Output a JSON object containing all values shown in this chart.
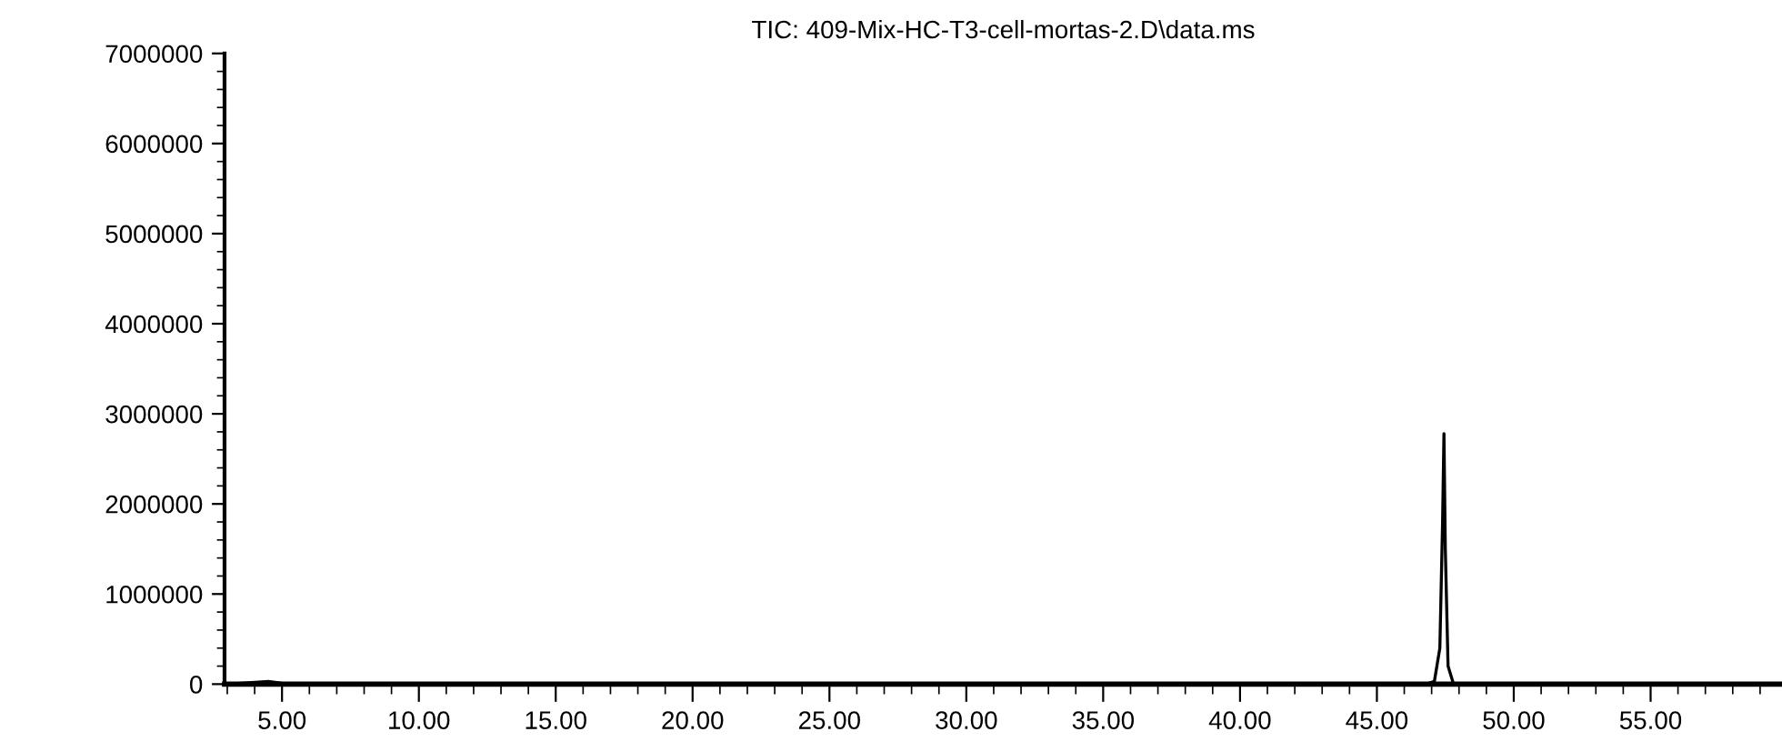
{
  "chart_data": {
    "type": "line",
    "title": "TIC: 409-Mix-HC-T3-cell-mortas-2.D\\data.ms",
    "x": [
      3.0,
      3.5,
      4.0,
      4.5,
      5.0,
      6.0,
      10.0,
      20.0,
      30.0,
      40.0,
      46.8,
      47.1,
      47.3,
      47.4,
      47.45,
      47.5,
      47.6,
      47.8,
      50.0,
      59.5
    ],
    "series": [
      {
        "color": "#000000",
        "values": [
          0,
          10000,
          20000,
          30000,
          10000,
          0,
          0,
          0,
          0,
          0,
          0,
          30000,
          400000,
          1800000,
          2780000,
          1500000,
          200000,
          0,
          0,
          0
        ]
      }
    ],
    "xlim": [
      2.9,
      59.8
    ],
    "xticks": [
      {
        "value": 3,
        "label": null
      },
      {
        "value": 4,
        "label": null
      },
      {
        "value": 5,
        "label": "5.00"
      },
      {
        "value": 6,
        "label": null
      },
      {
        "value": 7,
        "label": null
      },
      {
        "value": 8,
        "label": null
      },
      {
        "value": 9,
        "label": null
      },
      {
        "value": 10,
        "label": "10.00"
      },
      {
        "value": 11,
        "label": null
      },
      {
        "value": 12,
        "label": null
      },
      {
        "value": 13,
        "label": null
      },
      {
        "value": 14,
        "label": null
      },
      {
        "value": 15,
        "label": "15.00"
      },
      {
        "value": 16,
        "label": null
      },
      {
        "value": 17,
        "label": null
      },
      {
        "value": 18,
        "label": null
      },
      {
        "value": 19,
        "label": null
      },
      {
        "value": 20,
        "label": "20.00"
      },
      {
        "value": 21,
        "label": null
      },
      {
        "value": 22,
        "label": null
      },
      {
        "value": 23,
        "label": null
      },
      {
        "value": 24,
        "label": null
      },
      {
        "value": 25,
        "label": "25.00"
      },
      {
        "value": 26,
        "label": null
      },
      {
        "value": 27,
        "label": null
      },
      {
        "value": 28,
        "label": null
      },
      {
        "value": 29,
        "label": null
      },
      {
        "value": 30,
        "label": "30.00"
      },
      {
        "value": 31,
        "label": null
      },
      {
        "value": 32,
        "label": null
      },
      {
        "value": 33,
        "label": null
      },
      {
        "value": 34,
        "label": null
      },
      {
        "value": 35,
        "label": "35.00"
      },
      {
        "value": 36,
        "label": null
      },
      {
        "value": 37,
        "label": null
      },
      {
        "value": 38,
        "label": null
      },
      {
        "value": 39,
        "label": null
      },
      {
        "value": 40,
        "label": "40.00"
      },
      {
        "value": 41,
        "label": null
      },
      {
        "value": 42,
        "label": null
      },
      {
        "value": 43,
        "label": null
      },
      {
        "value": 44,
        "label": null
      },
      {
        "value": 45,
        "label": "45.00"
      },
      {
        "value": 46,
        "label": null
      },
      {
        "value": 47,
        "label": null
      },
      {
        "value": 48,
        "label": null
      },
      {
        "value": 49,
        "label": null
      },
      {
        "value": 50,
        "label": "50.00"
      },
      {
        "value": 51,
        "label": null
      },
      {
        "value": 52,
        "label": null
      },
      {
        "value": 53,
        "label": null
      },
      {
        "value": 54,
        "label": null
      },
      {
        "value": 55,
        "label": "55.00"
      },
      {
        "value": 56,
        "label": null
      },
      {
        "value": 57,
        "label": null
      },
      {
        "value": 58,
        "label": null
      },
      {
        "value": 59,
        "label": null
      }
    ],
    "ylim": [
      0,
      7000000
    ],
    "yticks": [
      0,
      {
        "value": 200000,
        "label": null
      },
      {
        "value": 400000,
        "label": null
      },
      {
        "value": 600000,
        "label": null
      },
      {
        "value": 800000,
        "label": null
      },
      1000000,
      {
        "value": 1200000,
        "label": null
      },
      {
        "value": 1400000,
        "label": null
      },
      {
        "value": 1600000,
        "label": null
      },
      {
        "value": 1800000,
        "label": null
      },
      2000000,
      {
        "value": 2200000,
        "label": null
      },
      {
        "value": 2400000,
        "label": null
      },
      {
        "value": 2600000,
        "label": null
      },
      {
        "value": 2800000,
        "label": null
      },
      3000000,
      {
        "value": 3200000,
        "label": null
      },
      {
        "value": 3400000,
        "label": null
      },
      {
        "value": 3600000,
        "label": null
      },
      {
        "value": 3800000,
        "label": null
      },
      4000000,
      {
        "value": 4200000,
        "label": null
      },
      {
        "value": 4400000,
        "label": null
      },
      {
        "value": 4600000,
        "label": null
      },
      {
        "value": 4800000,
        "label": null
      },
      5000000,
      {
        "value": 5200000,
        "label": null
      },
      {
        "value": 5400000,
        "label": null
      },
      {
        "value": 5600000,
        "label": null
      },
      {
        "value": 5800000,
        "label": null
      },
      6000000,
      {
        "value": 6200000,
        "label": null
      },
      {
        "value": 6400000,
        "label": null
      },
      {
        "value": 6600000,
        "label": null
      },
      {
        "value": 6800000,
        "label": null
      },
      7000000
    ],
    "grid": false,
    "legend": false,
    "marker": "none",
    "line_style": "solid"
  }
}
